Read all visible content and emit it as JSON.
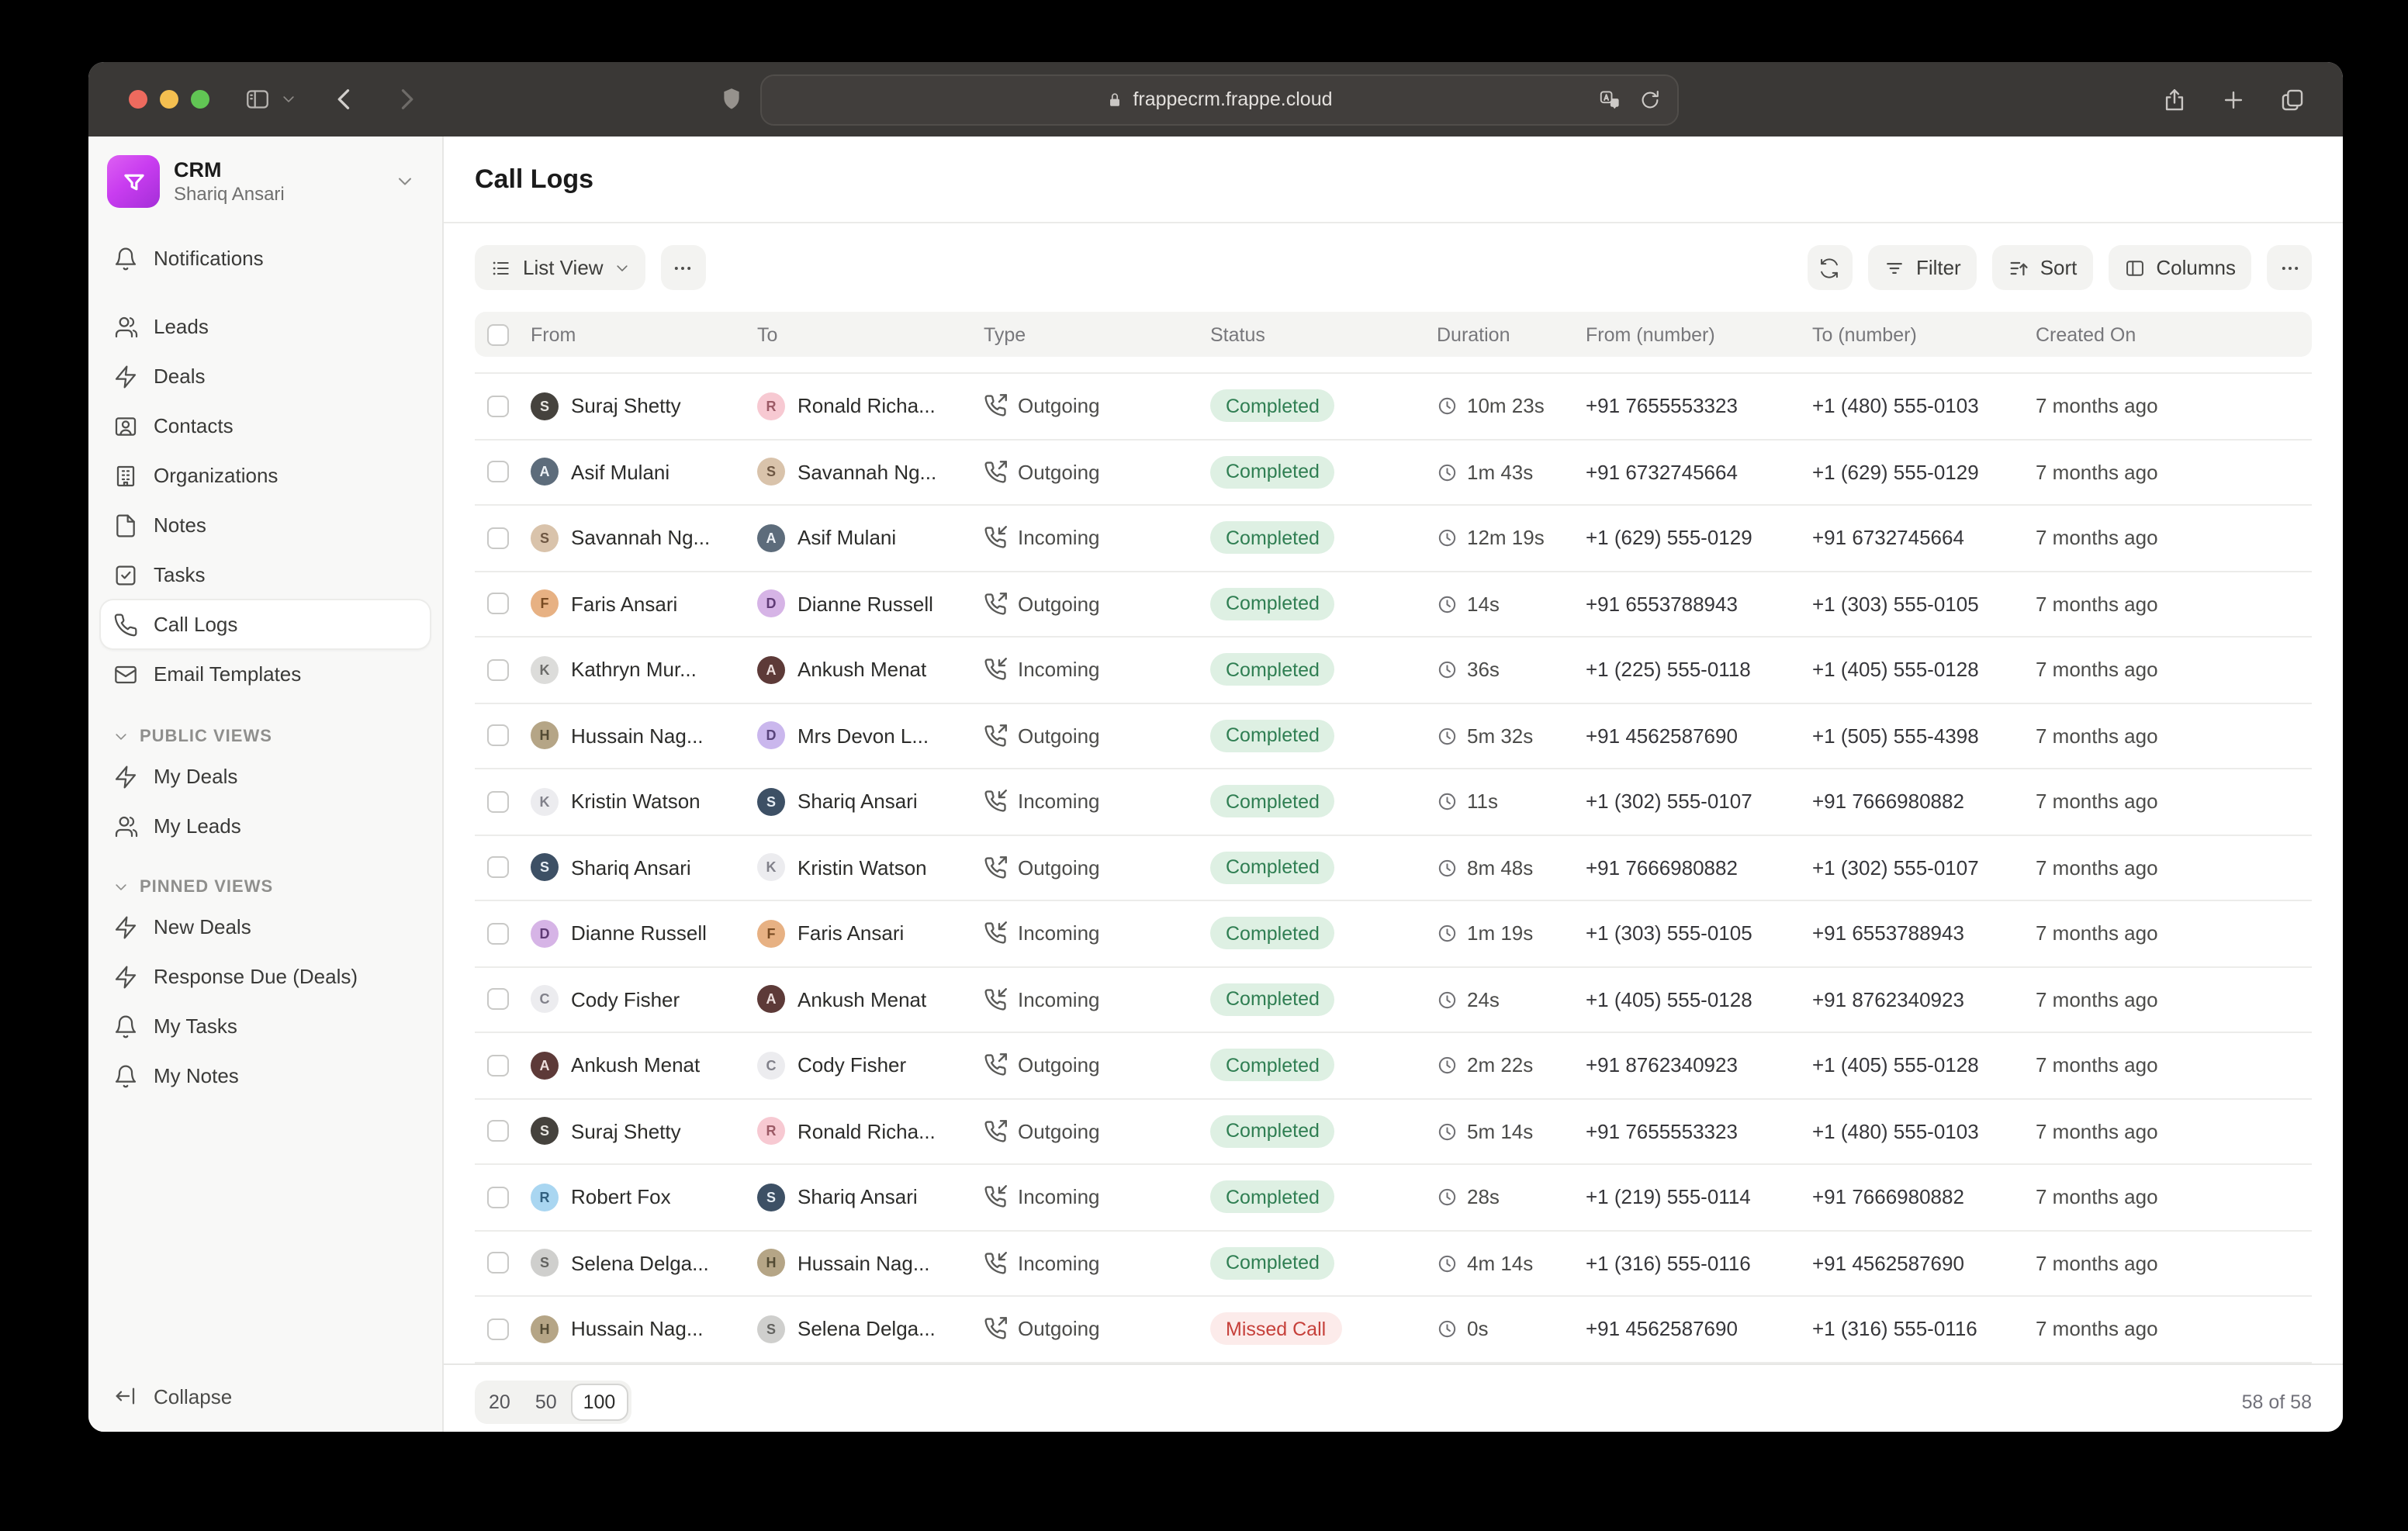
{
  "browser": {
    "url": "frappecrm.frappe.cloud",
    "traffic_lights": [
      "#ed6a5e",
      "#f4bf50",
      "#61c554"
    ]
  },
  "sidebar": {
    "app": {
      "title": "CRM",
      "subtitle": "Shariq Ansari",
      "logo_icon": "funnel-icon"
    },
    "nav": [
      {
        "label": "Notifications",
        "icon": "bell",
        "first": true
      },
      {
        "label": "Leads",
        "icon": "users"
      },
      {
        "label": "Deals",
        "icon": "zap"
      },
      {
        "label": "Contacts",
        "icon": "contact"
      },
      {
        "label": "Organizations",
        "icon": "building"
      },
      {
        "label": "Notes",
        "icon": "file"
      },
      {
        "label": "Tasks",
        "icon": "check-square"
      },
      {
        "label": "Call Logs",
        "icon": "phone",
        "active": true
      },
      {
        "label": "Email Templates",
        "icon": "mail"
      }
    ],
    "sections": [
      {
        "title": "PUBLIC VIEWS",
        "items": [
          {
            "label": "My Deals",
            "icon": "zap"
          },
          {
            "label": "My Leads",
            "icon": "users"
          }
        ]
      },
      {
        "title": "PINNED VIEWS",
        "items": [
          {
            "label": "New Deals",
            "icon": "zap"
          },
          {
            "label": "Response Due (Deals)",
            "icon": "zap"
          },
          {
            "label": "My Tasks",
            "icon": "bell"
          },
          {
            "label": "My Notes",
            "icon": "bell"
          }
        ]
      }
    ],
    "collapse_label": "Collapse"
  },
  "main": {
    "title": "Call Logs",
    "toolbar": {
      "view_label": "List View",
      "filter_label": "Filter",
      "sort_label": "Sort",
      "columns_label": "Columns"
    },
    "table": {
      "headers": [
        "From",
        "To",
        "Type",
        "Status",
        "Duration",
        "From (number)",
        "To (number)",
        "Created On"
      ],
      "rows": [
        {
          "from": "Suraj Shetty",
          "to": "Ronald Richa...",
          "type": "Outgoing",
          "status": "Completed",
          "duration": "10m 23s",
          "from_number": "+91 7655553323",
          "to_number": "+1 (480) 555-0103",
          "created": "7 months ago"
        },
        {
          "from": "Asif Mulani",
          "to": "Savannah Ng...",
          "type": "Outgoing",
          "status": "Completed",
          "duration": "1m 43s",
          "from_number": "+91 6732745664",
          "to_number": "+1 (629) 555-0129",
          "created": "7 months ago"
        },
        {
          "from": "Savannah Ng...",
          "to": "Asif Mulani",
          "type": "Incoming",
          "status": "Completed",
          "duration": "12m 19s",
          "from_number": "+1 (629) 555-0129",
          "to_number": "+91 6732745664",
          "created": "7 months ago"
        },
        {
          "from": "Faris Ansari",
          "to": "Dianne Russell",
          "type": "Outgoing",
          "status": "Completed",
          "duration": "14s",
          "from_number": "+91 6553788943",
          "to_number": "+1 (303) 555-0105",
          "created": "7 months ago"
        },
        {
          "from": "Kathryn Mur...",
          "to": "Ankush Menat",
          "type": "Incoming",
          "status": "Completed",
          "duration": "36s",
          "from_number": "+1 (225) 555-0118",
          "to_number": "+1 (405) 555-0128",
          "created": "7 months ago"
        },
        {
          "from": "Hussain Nag...",
          "to": "Mrs Devon L...",
          "type": "Outgoing",
          "status": "Completed",
          "duration": "5m 32s",
          "from_number": "+91 4562587690",
          "to_number": "+1 (505) 555-4398",
          "created": "7 months ago"
        },
        {
          "from": "Kristin Watson",
          "to": "Shariq Ansari",
          "type": "Incoming",
          "status": "Completed",
          "duration": "11s",
          "from_number": "+1 (302) 555-0107",
          "to_number": "+91 7666980882",
          "created": "7 months ago"
        },
        {
          "from": "Shariq Ansari",
          "to": "Kristin Watson",
          "type": "Outgoing",
          "status": "Completed",
          "duration": "8m 48s",
          "from_number": "+91 7666980882",
          "to_number": "+1 (302) 555-0107",
          "created": "7 months ago"
        },
        {
          "from": "Dianne Russell",
          "to": "Faris Ansari",
          "type": "Incoming",
          "status": "Completed",
          "duration": "1m 19s",
          "from_number": "+1 (303) 555-0105",
          "to_number": "+91 6553788943",
          "created": "7 months ago"
        },
        {
          "from": "Cody Fisher",
          "to": "Ankush Menat",
          "type": "Incoming",
          "status": "Completed",
          "duration": "24s",
          "from_number": "+1 (405) 555-0128",
          "to_number": "+91 8762340923",
          "created": "7 months ago"
        },
        {
          "from": "Ankush Menat",
          "to": "Cody Fisher",
          "type": "Outgoing",
          "status": "Completed",
          "duration": "2m 22s",
          "from_number": "+91 8762340923",
          "to_number": "+1 (405) 555-0128",
          "created": "7 months ago"
        },
        {
          "from": "Suraj Shetty",
          "to": "Ronald Richa...",
          "type": "Outgoing",
          "status": "Completed",
          "duration": "5m 14s",
          "from_number": "+91 7655553323",
          "to_number": "+1 (480) 555-0103",
          "created": "7 months ago"
        },
        {
          "from": "Robert Fox",
          "to": "Shariq Ansari",
          "type": "Incoming",
          "status": "Completed",
          "duration": "28s",
          "from_number": "+1 (219) 555-0114",
          "to_number": "+91 7666980882",
          "created": "7 months ago"
        },
        {
          "from": "Selena Delga...",
          "to": "Hussain Nag...",
          "type": "Incoming",
          "status": "Completed",
          "duration": "4m 14s",
          "from_number": "+1 (316) 555-0116",
          "to_number": "+91 4562587690",
          "created": "7 months ago"
        },
        {
          "from": "Hussain Nag...",
          "to": "Selena Delga...",
          "type": "Outgoing",
          "status": "Missed Call",
          "duration": "0s",
          "from_number": "+91 4562587690",
          "to_number": "+1 (316) 555-0116",
          "created": "7 months ago"
        }
      ]
    },
    "pagination": {
      "sizes": [
        "20",
        "50",
        "100"
      ],
      "active_size": "100",
      "count_label": "58 of 58"
    }
  },
  "avatars": {
    "Suraj Shetty": {
      "bg": "#45423d",
      "fg": "#e8e6e2",
      "initial": "S"
    },
    "Ronald Richa...": {
      "bg": "#f7c9d2",
      "fg": "#9c5a66",
      "initial": "R"
    },
    "Asif Mulani": {
      "bg": "#5d6c7b",
      "fg": "#eef2f6",
      "initial": "A"
    },
    "Savannah Ng...": {
      "bg": "#d9c3ab",
      "fg": "#6e5743",
      "initial": "S"
    },
    "Faris Ansari": {
      "bg": "#e7b183",
      "fg": "#774a22",
      "initial": "F"
    },
    "Dianne Russell": {
      "bg": "#d6b4e6",
      "fg": "#5f3b75",
      "initial": "D"
    },
    "Kathryn Mur...": {
      "bg": "#dcdcda",
      "fg": "#6b6b69",
      "initial": "K"
    },
    "Ankush Menat": {
      "bg": "#5d3a38",
      "fg": "#eddfdd",
      "initial": "A"
    },
    "Hussain Nag...": {
      "bg": "#b5a586",
      "fg": "#524a33",
      "initial": "H"
    },
    "Mrs Devon L...": {
      "bg": "#cab7ed",
      "fg": "#58437b",
      "initial": "D"
    },
    "Kristin Watson": {
      "bg": "#ececef",
      "fg": "#81818a",
      "initial": "K"
    },
    "Shariq Ansari": {
      "bg": "#3d5065",
      "fg": "#e6edf4",
      "initial": "S"
    },
    "Cody Fisher": {
      "bg": "#ececef",
      "fg": "#81818a",
      "initial": "C"
    },
    "Robert Fox": {
      "bg": "#a9d6f1",
      "fg": "#31607f",
      "initial": "R"
    },
    "Selena Delga...": {
      "bg": "#cfcfcd",
      "fg": "#636360",
      "initial": "S"
    }
  },
  "colors": {
    "status": {
      "Completed": {
        "bg": "#def0e3",
        "fg": "#2f7e52"
      },
      "Missed Call": {
        "bg": "#fcebea",
        "fg": "#c6403a"
      }
    }
  }
}
